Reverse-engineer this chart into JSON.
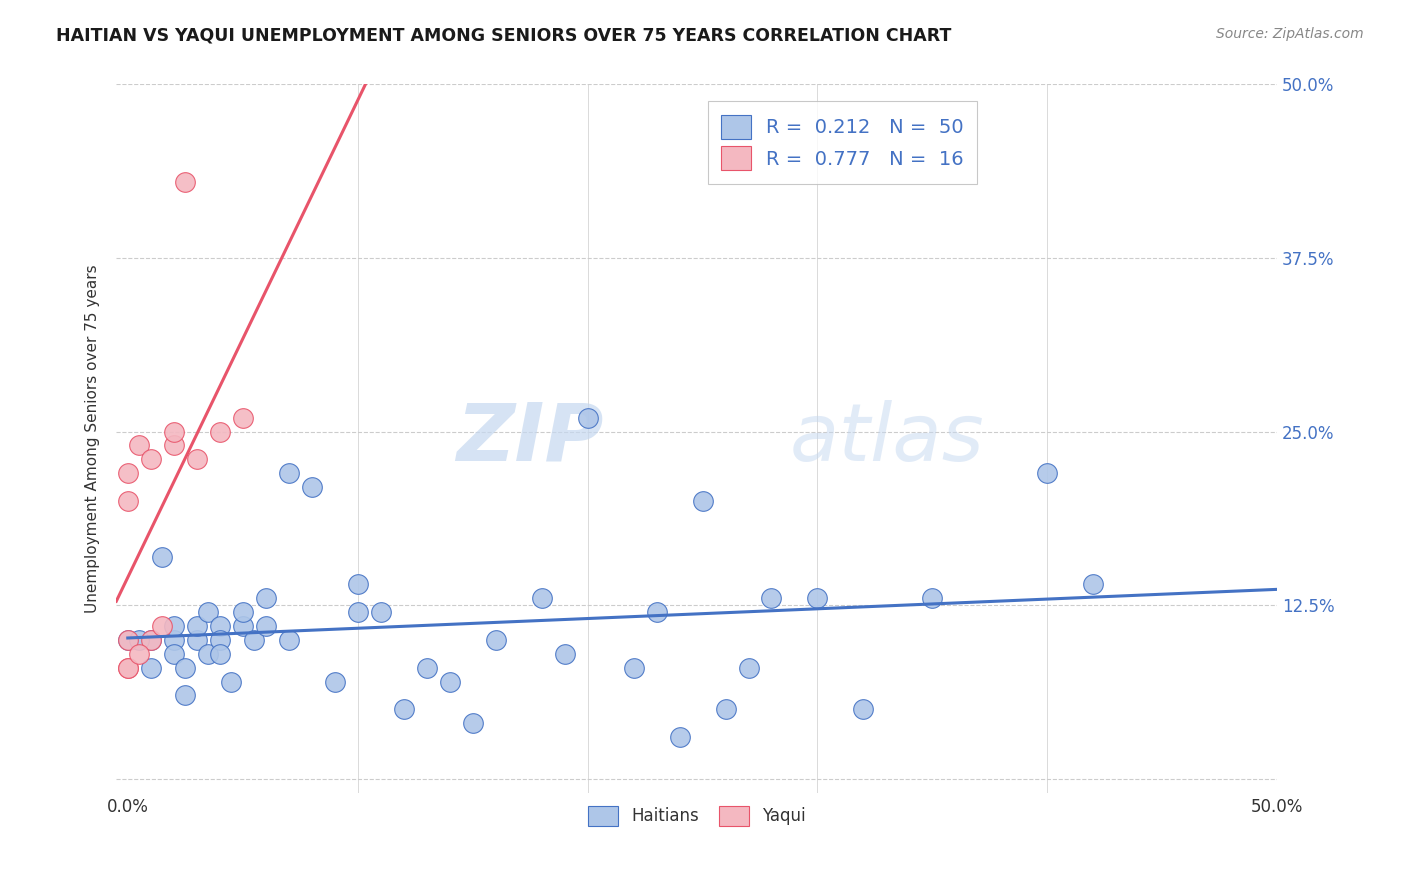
{
  "title": "HAITIAN VS YAQUI UNEMPLOYMENT AMONG SENIORS OVER 75 YEARS CORRELATION CHART",
  "source": "Source: ZipAtlas.com",
  "ylabel": "Unemployment Among Seniors over 75 years",
  "xlim": [
    -0.5,
    50.0
  ],
  "ylim": [
    -1.0,
    50.0
  ],
  "xticks": [
    0.0,
    10.0,
    20.0,
    30.0,
    40.0,
    50.0
  ],
  "xticklabels": [
    "0.0%",
    "",
    "",
    "",
    "",
    "50.0%"
  ],
  "yticks": [
    0.0,
    12.5,
    25.0,
    37.5,
    50.0
  ],
  "ytick_right_labels": [
    "",
    "12.5%",
    "25.0%",
    "37.5%",
    "50.0%"
  ],
  "legend_r_haitian": "0.212",
  "legend_n_haitian": "50",
  "legend_r_yaqui": "0.777",
  "legend_n_yaqui": "16",
  "haitian_color": "#aec6e8",
  "yaqui_color": "#f4b8c1",
  "haitian_line_color": "#4472c4",
  "yaqui_line_color": "#e8546a",
  "watermark_zip": "ZIP",
  "watermark_atlas": "atlas",
  "haitian_x": [
    0.0,
    1.0,
    1.0,
    1.5,
    2.0,
    2.0,
    2.0,
    2.5,
    2.5,
    3.0,
    3.0,
    3.5,
    3.5,
    4.0,
    4.0,
    4.0,
    4.5,
    5.0,
    5.0,
    5.5,
    6.0,
    6.0,
    7.0,
    7.0,
    8.0,
    9.0,
    10.0,
    10.0,
    11.0,
    12.0,
    13.0,
    14.0,
    15.0,
    16.0,
    18.0,
    19.0,
    20.0,
    22.0,
    23.0,
    24.0,
    25.0,
    26.0,
    27.0,
    28.0,
    30.0,
    32.0,
    35.0,
    40.0,
    42.0,
    0.5
  ],
  "haitian_y": [
    10.0,
    10.0,
    8.0,
    16.0,
    10.0,
    11.0,
    9.0,
    8.0,
    6.0,
    10.0,
    11.0,
    12.0,
    9.0,
    11.0,
    10.0,
    9.0,
    7.0,
    11.0,
    12.0,
    10.0,
    13.0,
    11.0,
    10.0,
    22.0,
    21.0,
    7.0,
    12.0,
    14.0,
    12.0,
    5.0,
    8.0,
    7.0,
    4.0,
    10.0,
    13.0,
    9.0,
    26.0,
    8.0,
    12.0,
    3.0,
    20.0,
    5.0,
    8.0,
    13.0,
    13.0,
    5.0,
    13.0,
    22.0,
    14.0,
    10.0
  ],
  "yaqui_x": [
    0.0,
    0.0,
    0.0,
    0.0,
    0.0,
    0.5,
    1.0,
    1.0,
    1.5,
    2.0,
    2.0,
    2.5,
    3.0,
    4.0,
    5.0,
    0.5
  ],
  "yaqui_y": [
    10.0,
    8.0,
    20.0,
    22.0,
    8.0,
    24.0,
    23.0,
    10.0,
    11.0,
    24.0,
    25.0,
    43.0,
    23.0,
    25.0,
    26.0,
    9.0
  ]
}
